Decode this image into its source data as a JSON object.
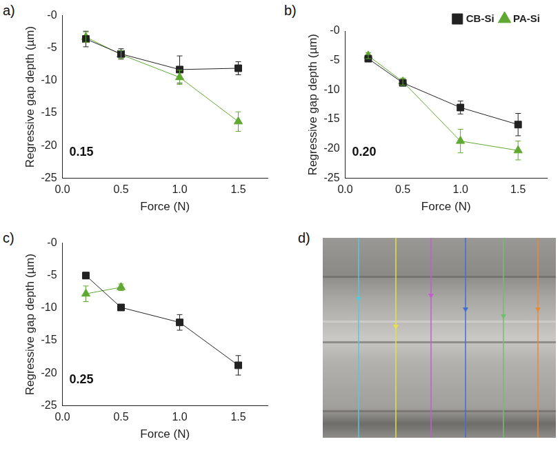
{
  "chart_data": [
    {
      "type": "line",
      "label": "a)",
      "annotation": "0.15",
      "x_label": "Force (N)",
      "y_label": "Regressive gap depth (µm)",
      "x": [
        0.2,
        0.5,
        1.0,
        1.5
      ],
      "series": [
        {
          "color": "#222222",
          "marker": "square",
          "line_style": "solid",
          "values": [
            -3.6,
            -5.9,
            -8.3,
            -8.1
          ],
          "errors": [
            1.2,
            0.8,
            2.1,
            1.0
          ]
        },
        {
          "color": "#5fa832",
          "marker": "triangle",
          "line_style": "solid",
          "values": [
            -3.3,
            -6.0,
            -9.5,
            -16.3
          ],
          "errors": [
            0.8,
            0.6,
            1.1,
            1.5
          ]
        }
      ],
      "xlim": [
        0,
        1.75
      ],
      "xticks": [
        {
          "value": 0,
          "label": "0.0"
        },
        {
          "value": 0.5,
          "label": "0.5"
        },
        {
          "value": 1,
          "label": "1.0"
        },
        {
          "value": 1.5,
          "label": "1.5"
        }
      ],
      "ylim": [
        -25,
        0
      ],
      "yticks": [
        -25,
        -20,
        -15,
        -10,
        -5,
        {
          "value": 0,
          "label": "-0"
        }
      ],
      "grid": false
    },
    {
      "type": "line",
      "label": "b)",
      "annotation": "0.20",
      "x_label": "Force (N)",
      "y_label": "Regressive gap depth (µm)",
      "x": [
        0.2,
        0.5,
        1.0,
        1.5
      ],
      "series": [
        {
          "name": "CB-Si",
          "color": "#222222",
          "marker": "square",
          "line_style": "solid",
          "values": [
            -4.7,
            -8.8,
            -13.0,
            -15.9
          ],
          "errors": [
            0.4,
            0.5,
            1.1,
            1.9
          ]
        },
        {
          "name": "PA-Si",
          "color": "#5fa832",
          "marker": "triangle",
          "line_style": "solid",
          "values": [
            -4.2,
            -8.6,
            -18.7,
            -20.3
          ],
          "errors": [
            0.5,
            0.6,
            2.0,
            1.6
          ]
        }
      ],
      "xlim": [
        0,
        1.75
      ],
      "xticks": [
        {
          "value": 0,
          "label": "0.0"
        },
        {
          "value": 0.5,
          "label": "0.5"
        },
        {
          "value": 1,
          "label": "1.0"
        },
        {
          "value": 1.5,
          "label": "1.5"
        }
      ],
      "ylim": [
        -25,
        0
      ],
      "yticks": [
        -25,
        -20,
        -15,
        -10,
        -5,
        {
          "value": 0,
          "label": "-0"
        }
      ],
      "grid": false,
      "legend": "top right"
    },
    {
      "type": "line",
      "label": "c)",
      "annotation": "0.25",
      "x_label": "Force (N)",
      "y_label": "Regressive gap depth (µm)",
      "x": [
        0.2,
        0.5,
        1.0,
        1.5
      ],
      "series": [
        {
          "color": "#222222",
          "marker": "square",
          "line_style": "solid",
          "values": [
            -5.0,
            -9.9,
            -12.2,
            -18.8
          ],
          "errors": [
            0.5,
            0.4,
            1.2,
            1.5
          ]
        },
        {
          "color": "#5fa832",
          "marker": "triangle",
          "line_style": "solid",
          "values": [
            -7.8,
            -6.8,
            null,
            null
          ],
          "errors": [
            1.2,
            0.5,
            null,
            null
          ]
        }
      ],
      "xlim": [
        0,
        1.75
      ],
      "xticks": [
        {
          "value": 0,
          "label": "0.0"
        },
        {
          "value": 0.5,
          "label": "0.5"
        },
        {
          "value": 1,
          "label": "1.0"
        },
        {
          "value": 1.5,
          "label": "1.5"
        }
      ],
      "ylim": [
        -25,
        0
      ],
      "yticks": [
        -25,
        -20,
        -15,
        -10,
        -5,
        {
          "value": 0,
          "label": "-0"
        }
      ],
      "grid": false
    }
  ],
  "image": {
    "label": "d)"
  }
}
